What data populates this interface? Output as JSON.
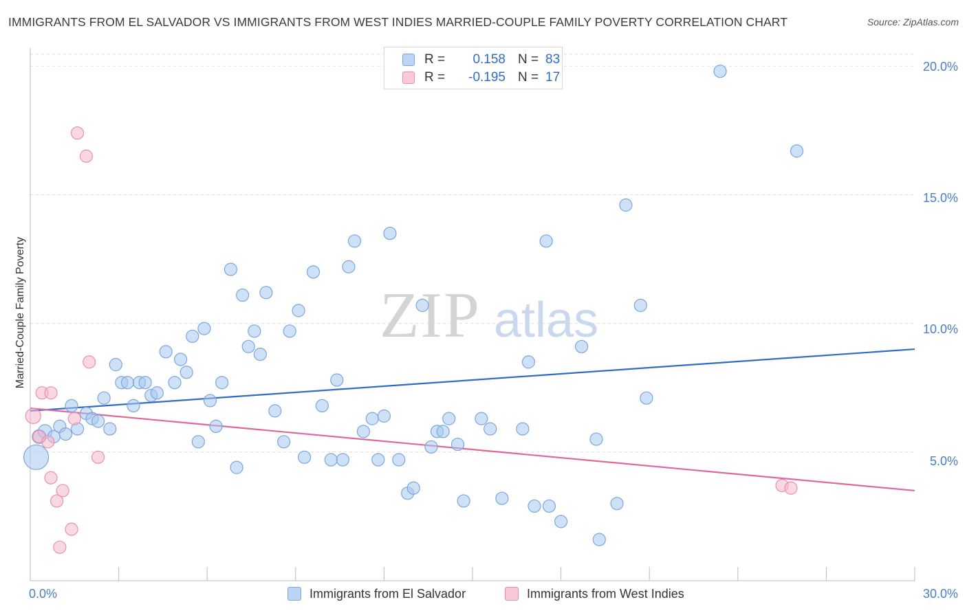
{
  "title": "IMMIGRANTS FROM EL SALVADOR VS IMMIGRANTS FROM WEST INDIES MARRIED-COUPLE FAMILY POVERTY CORRELATION CHART",
  "source": "Source: ZipAtlas.com",
  "watermark": {
    "zip": "ZIP",
    "atlas": "atlas"
  },
  "legend": {
    "rows": [
      {
        "r_label": "R =",
        "r_value": "0.158",
        "n_label": "N =",
        "n_value": "83"
      },
      {
        "r_label": "R =",
        "r_value": "-0.195",
        "n_label": "N =",
        "n_value": "17"
      }
    ]
  },
  "colors": {
    "blue_fill": "#a8c8f0",
    "blue_stroke": "#7aa6dd",
    "blue_line": "#2f6cc4",
    "pink_fill": "#f5b8cb",
    "pink_stroke": "#e890ad",
    "pink_line": "#e0679a",
    "grid": "#dddddd",
    "axis": "#bbbbbb"
  },
  "chart_data": {
    "type": "scatter",
    "xlabel": "",
    "ylabel": "Married-Couple Family Poverty",
    "xlim": [
      0,
      30
    ],
    "ylim": [
      0,
      20.7
    ],
    "x_tick_labels": [
      "0.0%",
      "30.0%"
    ],
    "y_ticks": [
      5,
      10,
      15,
      20
    ],
    "y_tick_labels": [
      "5.0%",
      "10.0%",
      "15.0%",
      "20.0%"
    ],
    "grid": "horizontal dashed",
    "legend_placement": "bottom",
    "series": [
      {
        "name": "Immigrants from El Salvador",
        "color": "#a8c8f0",
        "trend": [
          [
            0,
            6.6
          ],
          [
            30,
            9.0
          ]
        ],
        "points": [
          [
            0.2,
            4.8,
            18
          ],
          [
            0.3,
            5.6,
            10
          ],
          [
            0.5,
            5.8,
            10
          ],
          [
            0.8,
            5.6,
            9
          ],
          [
            1.0,
            6.0,
            9
          ],
          [
            1.2,
            5.7,
            9
          ],
          [
            1.4,
            6.8,
            9
          ],
          [
            1.6,
            5.9,
            9
          ],
          [
            1.9,
            6.5,
            9
          ],
          [
            2.1,
            6.3,
            9
          ],
          [
            2.3,
            6.2,
            9
          ],
          [
            2.5,
            7.1,
            9
          ],
          [
            2.7,
            5.9,
            9
          ],
          [
            2.9,
            8.4,
            9
          ],
          [
            3.1,
            7.7,
            9
          ],
          [
            3.3,
            7.7,
            9
          ],
          [
            3.5,
            6.8,
            9
          ],
          [
            3.7,
            7.7,
            9
          ],
          [
            3.9,
            7.7,
            9
          ],
          [
            4.1,
            7.2,
            9
          ],
          [
            4.3,
            7.3,
            9
          ],
          [
            4.6,
            8.9,
            9
          ],
          [
            4.9,
            7.7,
            9
          ],
          [
            5.1,
            8.6,
            9
          ],
          [
            5.3,
            8.1,
            9
          ],
          [
            5.5,
            9.5,
            9
          ],
          [
            5.7,
            5.4,
            9
          ],
          [
            5.9,
            9.8,
            9
          ],
          [
            6.1,
            7.0,
            9
          ],
          [
            6.3,
            6.0,
            9
          ],
          [
            6.5,
            7.7,
            9
          ],
          [
            6.8,
            12.1,
            9
          ],
          [
            7.0,
            4.4,
            9
          ],
          [
            7.2,
            11.1,
            9
          ],
          [
            7.4,
            9.1,
            9
          ],
          [
            7.6,
            9.7,
            9
          ],
          [
            7.8,
            8.8,
            9
          ],
          [
            8.0,
            11.2,
            9
          ],
          [
            8.3,
            6.6,
            9
          ],
          [
            8.6,
            5.4,
            9
          ],
          [
            8.8,
            9.7,
            9
          ],
          [
            9.1,
            10.5,
            9
          ],
          [
            9.3,
            4.8,
            9
          ],
          [
            9.6,
            12.0,
            9
          ],
          [
            9.9,
            6.8,
            9
          ],
          [
            10.2,
            4.7,
            9
          ],
          [
            10.4,
            7.8,
            9
          ],
          [
            10.6,
            4.7,
            9
          ],
          [
            10.8,
            12.2,
            9
          ],
          [
            11.0,
            13.2,
            9
          ],
          [
            11.3,
            5.8,
            9
          ],
          [
            11.6,
            6.3,
            9
          ],
          [
            11.8,
            4.7,
            9
          ],
          [
            12.0,
            6.4,
            9
          ],
          [
            12.2,
            13.5,
            9
          ],
          [
            12.5,
            4.7,
            9
          ],
          [
            12.8,
            3.4,
            9
          ],
          [
            13.0,
            3.6,
            9
          ],
          [
            13.3,
            10.7,
            9
          ],
          [
            13.6,
            5.2,
            9
          ],
          [
            13.8,
            5.8,
            9
          ],
          [
            14.0,
            5.8,
            9
          ],
          [
            14.2,
            6.3,
            9
          ],
          [
            14.5,
            5.3,
            9
          ],
          [
            14.7,
            3.1,
            9
          ],
          [
            15.3,
            6.3,
            9
          ],
          [
            15.6,
            5.9,
            9
          ],
          [
            16.0,
            3.2,
            9
          ],
          [
            16.7,
            5.9,
            9
          ],
          [
            16.9,
            8.5,
            9
          ],
          [
            17.1,
            2.9,
            9
          ],
          [
            17.5,
            13.2,
            9
          ],
          [
            17.6,
            2.9,
            9
          ],
          [
            18.0,
            2.3,
            9
          ],
          [
            18.7,
            9.1,
            9
          ],
          [
            19.2,
            5.5,
            9
          ],
          [
            19.3,
            1.6,
            9
          ],
          [
            19.9,
            3.0,
            9
          ],
          [
            20.2,
            14.6,
            9
          ],
          [
            20.7,
            10.7,
            9
          ],
          [
            20.9,
            7.1,
            9
          ],
          [
            23.4,
            19.8,
            9
          ],
          [
            26.0,
            16.7,
            9
          ]
        ]
      },
      {
        "name": "Immigrants from West Indies",
        "color": "#f5b8cb",
        "trend": [
          [
            0,
            6.7
          ],
          [
            30,
            3.5
          ]
        ],
        "points": [
          [
            0.1,
            6.4,
            11
          ],
          [
            0.3,
            5.6,
            9
          ],
          [
            0.4,
            7.3,
            9
          ],
          [
            0.6,
            5.4,
            9
          ],
          [
            0.7,
            4.0,
            9
          ],
          [
            0.7,
            7.3,
            9
          ],
          [
            0.9,
            3.1,
            9
          ],
          [
            1.0,
            1.3,
            9
          ],
          [
            1.1,
            3.5,
            9
          ],
          [
            1.4,
            2.0,
            9
          ],
          [
            1.5,
            6.3,
            9
          ],
          [
            1.6,
            17.4,
            9
          ],
          [
            1.9,
            16.5,
            9
          ],
          [
            2.0,
            8.5,
            9
          ],
          [
            2.3,
            4.8,
            9
          ],
          [
            25.5,
            3.7,
            9
          ],
          [
            25.8,
            3.6,
            9
          ]
        ]
      }
    ]
  }
}
